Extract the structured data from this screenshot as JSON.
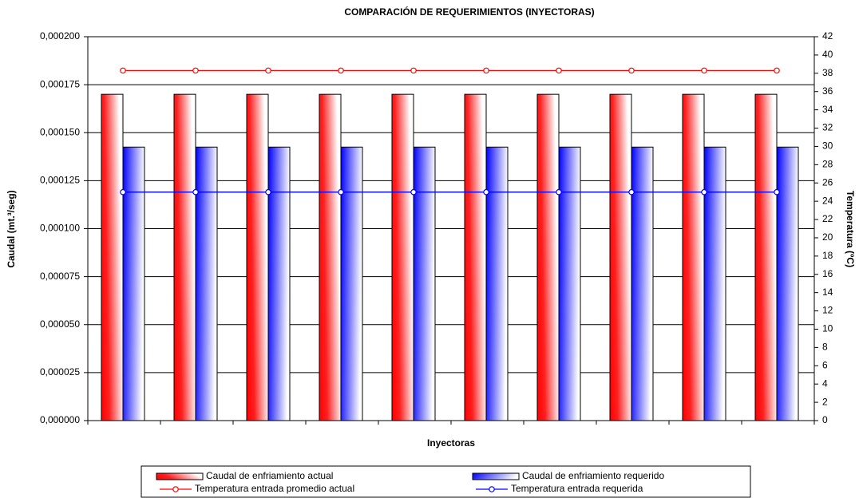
{
  "chart_data": {
    "type": "bar",
    "title": "COMPARACIÓN DE REQUERIMIENTOS (INYECTORAS)",
    "xlabel": "Inyectoras",
    "ylabel": "Caudal (mt.³/seg)",
    "y2label": "Temperatura (ºC)",
    "categories": [
      null,
      null,
      null,
      null,
      null,
      null,
      null,
      null,
      null,
      null
    ],
    "series": [
      {
        "name": "Caudal de enfriamiento actual",
        "type": "bar",
        "axis": "y",
        "color": "#ff0000",
        "values": [
          0.00017,
          0.00017,
          0.00017,
          0.00017,
          0.00017,
          0.00017,
          0.00017,
          0.00017,
          0.00017,
          0.00017
        ]
      },
      {
        "name": "Caudal de enfriamiento requerido",
        "type": "bar",
        "axis": "y",
        "color": "#0000ff",
        "values": [
          0.0001425,
          0.0001425,
          0.0001425,
          0.0001425,
          0.0001425,
          0.0001425,
          0.0001425,
          0.0001425,
          0.0001425,
          0.0001425
        ]
      },
      {
        "name": "Temperatura entrada promedio actual",
        "type": "line",
        "axis": "y2",
        "color": "#ff0000",
        "values": [
          38.3,
          38.3,
          38.3,
          38.3,
          38.3,
          38.3,
          38.3,
          38.3,
          38.3,
          38.3
        ]
      },
      {
        "name": "Temperatura entrada requerida",
        "type": "line",
        "axis": "y2",
        "color": "#0000ff",
        "values": [
          25,
          25,
          25,
          25,
          25,
          25,
          25,
          25,
          25,
          25
        ]
      }
    ],
    "ylim": [
      0,
      0.0002
    ],
    "yticks": [
      {
        "value": 0,
        "label": "0,000000"
      },
      {
        "value": 2.5e-05,
        "label": "0,000025"
      },
      {
        "value": 5e-05,
        "label": "0,000050"
      },
      {
        "value": 7.5e-05,
        "label": "0,000075"
      },
      {
        "value": 0.0001,
        "label": "0,000100"
      },
      {
        "value": 0.000125,
        "label": "0,000125"
      },
      {
        "value": 0.00015,
        "label": "0,000150"
      },
      {
        "value": 0.000175,
        "label": "0,000175"
      },
      {
        "value": 0.0002,
        "label": "0,000200"
      }
    ],
    "y2lim": [
      0,
      42
    ],
    "y2ticks": [
      0,
      2,
      4,
      6,
      8,
      10,
      12,
      14,
      16,
      18,
      20,
      22,
      24,
      26,
      28,
      30,
      32,
      34,
      36,
      38,
      40,
      42
    ],
    "grid": true,
    "legend": "bottom"
  }
}
